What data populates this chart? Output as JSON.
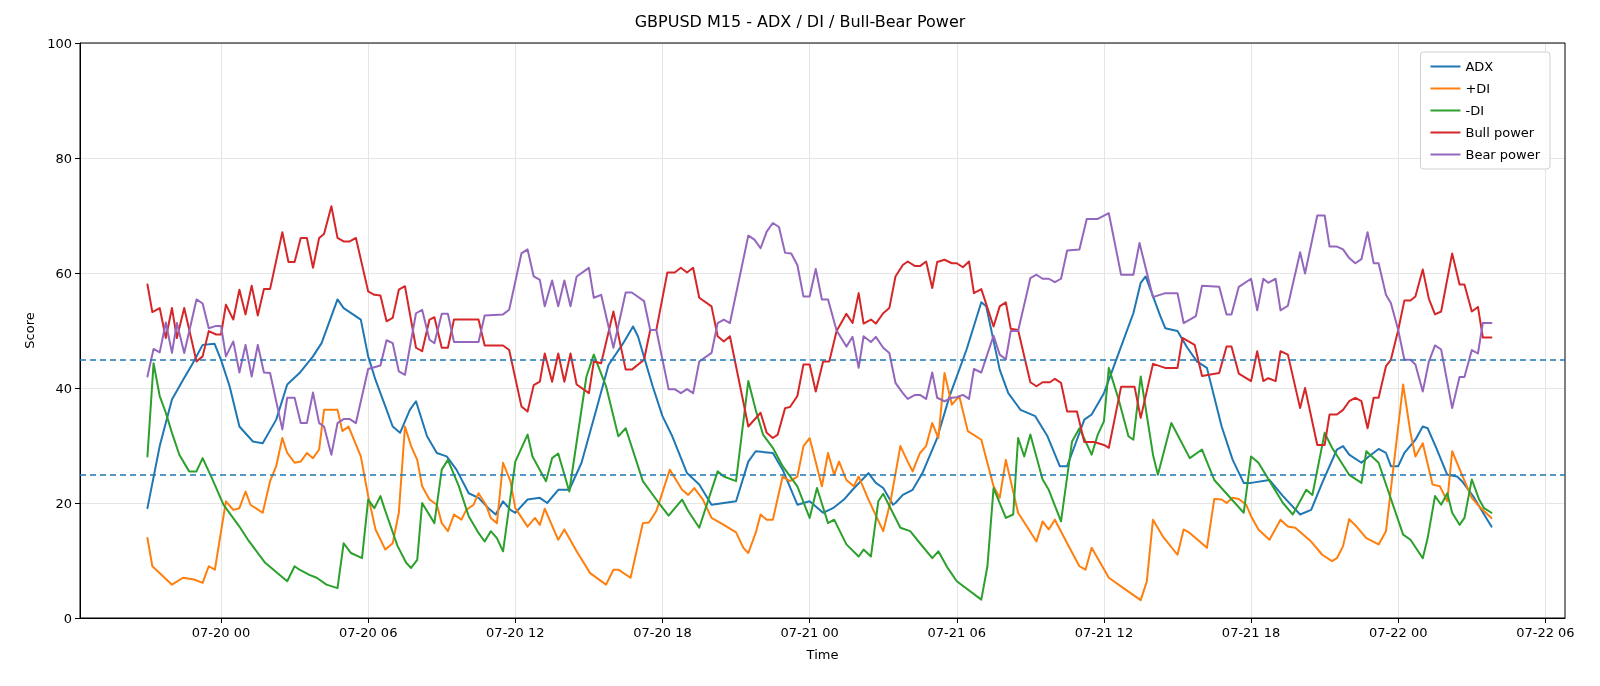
{
  "chart_data": {
    "type": "line",
    "title": "GBPUSD M15 - ADX / DI / Bull-Bear Power",
    "xlabel": "Time",
    "ylabel": "Score",
    "xlim": [
      "--07-19T18:15",
      "--07-22T06:48"
    ],
    "ylim": [
      0,
      100
    ],
    "yticks": [
      0,
      20,
      40,
      60,
      80,
      100
    ],
    "xticks": [
      {
        "value": "--07-20T00:00",
        "label": "07-20 00"
      },
      {
        "value": "--07-20T06:00",
        "label": "07-20 06"
      },
      {
        "value": "--07-20T12:00",
        "label": "07-20 12"
      },
      {
        "value": "--07-20T18:00",
        "label": "07-20 18"
      },
      {
        "value": "--07-21T00:00",
        "label": "07-21 00"
      },
      {
        "value": "--07-21T06:00",
        "label": "07-21 06"
      },
      {
        "value": "--07-21T12:00",
        "label": "07-21 12"
      },
      {
        "value": "--07-21T18:00",
        "label": "07-21 18"
      },
      {
        "value": "--07-22T00:00",
        "label": "07-22 00"
      },
      {
        "value": "--07-22T06:00",
        "label": "07-22 06"
      }
    ],
    "grid": true,
    "legend": "top right",
    "marker": "none",
    "line_style": "solid",
    "ref_lines": [
      {
        "axis": "y",
        "value": 45,
        "color": "#1f77b4",
        "line_style": "dashed"
      },
      {
        "axis": "y",
        "value": 25,
        "color": "#1f77b4",
        "line_style": "dashed"
      }
    ],
    "series": [
      {
        "name": "ADX",
        "color": "#1f77b4",
        "x": [
          "--07-19T21:00",
          "--07-19T21:30",
          "--07-19T22:00",
          "--07-19T22:27",
          "--07-19T22:51",
          "--07-19T23:15",
          "--07-19T23:44",
          "--07-20T00:00",
          "--07-20T00:21",
          "--07-20T00:45",
          "--07-20T01:18",
          "--07-20T01:42",
          "--07-20T02:15",
          "--07-20T02:42",
          "--07-20T03:12",
          "--07-20T03:45",
          "--07-20T04:06",
          "--07-20T04:45",
          "--07-20T05:00",
          "--07-20T05:42",
          "--07-20T06:00",
          "--07-20T06:18",
          "--07-20T06:42",
          "--07-20T07:00",
          "--07-20T07:18",
          "--07-20T07:42",
          "--07-20T07:57",
          "--07-20T08:24",
          "--07-20T08:48",
          "--07-20T09:12",
          "--07-20T09:36",
          "--07-20T10:06",
          "--07-20T10:30",
          "--07-20T10:54",
          "--07-20T11:12",
          "--07-20T11:30",
          "--07-20T11:48",
          "--07-20T12:00",
          "--07-20T12:30",
          "--07-20T13:00",
          "--07-20T13:18",
          "--07-20T13:45",
          "--07-20T14:12",
          "--07-20T14:42",
          "--07-20T15:18",
          "--07-20T15:48",
          "--07-20T16:24",
          "--07-20T16:48",
          "--07-20T17:00",
          "--07-20T17:36",
          "--07-20T18:00",
          "--07-20T18:24",
          "--07-20T19:00",
          "--07-20T19:30",
          "--07-20T20:00",
          "--07-20T20:30",
          "--07-20T21:00",
          "--07-20T21:30",
          "--07-20T21:48",
          "--07-20T22:30",
          "--07-20T22:54",
          "--07-20T23:30",
          "--07-21T00:00",
          "--07-21T00:33",
          "--07-21T00:57",
          "--07-21T01:24",
          "--07-21T01:45",
          "--07-21T02:24",
          "--07-21T02:42",
          "--07-21T03:00",
          "--07-21T03:24",
          "--07-21T03:30",
          "--07-21T03:48",
          "--07-21T04:12",
          "--07-21T04:36",
          "--07-21T05:12",
          "--07-21T05:42",
          "--07-21T06:24",
          "--07-21T07:00",
          "--07-21T07:12",
          "--07-21T07:45",
          "--07-21T08:06",
          "--07-21T08:36",
          "--07-21T09:12",
          "--07-21T09:42",
          "--07-21T10:12",
          "--07-21T10:30",
          "--07-21T10:54",
          "--07-21T11:12",
          "--07-21T11:30",
          "--07-21T12:00",
          "--07-21T12:30",
          "--07-21T13:12",
          "--07-21T13:30",
          "--07-21T13:42",
          "--07-21T14:18",
          "--07-21T14:30",
          "--07-21T15:00",
          "--07-21T15:24",
          "--07-21T15:48",
          "--07-21T16:12",
          "--07-21T16:48",
          "--07-21T17:15",
          "--07-21T17:42",
          "--07-21T18:00",
          "--07-21T18:45",
          "--07-21T19:18",
          "--07-21T20:00",
          "--07-21T20:27",
          "--07-21T20:54",
          "--07-21T21:30",
          "--07-21T21:45",
          "--07-21T22:00",
          "--07-21T22:30",
          "--07-21T22:48",
          "--07-21T23:12",
          "--07-21T23:30",
          "--07-21T23:42",
          "--07-22T00:00",
          "--07-22T00:15",
          "--07-22T00:42",
          "--07-22T01:00",
          "--07-22T01:12",
          "--07-22T01:33",
          "--07-22T02:00",
          "--07-22T02:24",
          "--07-22T02:36",
          "--07-22T03:03",
          "--07-22T03:48"
        ],
        "values": [
          19.1,
          29.9,
          38,
          41.4,
          44.3,
          47.5,
          47.7,
          44.9,
          40.3,
          33.3,
          30.7,
          30.4,
          34.5,
          40.6,
          42.6,
          45.5,
          47.8,
          55.4,
          53.9,
          51.9,
          45.5,
          41.4,
          36.8,
          33.3,
          32.2,
          36.2,
          37.7,
          31.6,
          28.7,
          28.1,
          25.8,
          21.7,
          20.9,
          19.1,
          18,
          20.3,
          18.8,
          18.3,
          20.6,
          20.9,
          20,
          22.3,
          22.3,
          27,
          36.2,
          44,
          47.8,
          50.7,
          49,
          40.3,
          35.1,
          31.6,
          25.2,
          23.2,
          19.7,
          20,
          20.3,
          27.2,
          29,
          28.7,
          25.8,
          19.7,
          20.3,
          18.3,
          19.1,
          20.6,
          22.3,
          25.2,
          23.5,
          22.6,
          19.7,
          20,
          21.4,
          22.3,
          25.2,
          31.3,
          38.5,
          46.7,
          54.9,
          54.2,
          43.2,
          39.1,
          36.2,
          35.1,
          31.6,
          26.4,
          26.4,
          31,
          34.5,
          35.4,
          39.1,
          44.9,
          53,
          58.3,
          59.4,
          52.5,
          50.4,
          49.9,
          47,
          44.6,
          43.5,
          33.3,
          27.5,
          23.5,
          23.5,
          24,
          21.2,
          18,
          18.8,
          23.5,
          29.3,
          29.9,
          28.4,
          27,
          28.1,
          29.4,
          28.7,
          26.4,
          26.4,
          28.7,
          31,
          33.3,
          33,
          29.6,
          24.9,
          24.6,
          23.8,
          21.2,
          15.9
        ]
      },
      {
        "name": "+DI",
        "color": "#ff7f0e",
        "x": [
          "--07-19T21:00",
          "--07-19T21:12",
          "--07-19T21:42",
          "--07-19T22:00",
          "--07-19T22:27",
          "--07-19T22:54",
          "--07-19T23:15",
          "--07-19T23:30",
          "--07-19T23:45",
          "--07-20T00:12",
          "--07-20T00:30",
          "--07-20T00:45",
          "--07-20T01:00",
          "--07-20T01:12",
          "--07-20T01:42",
          "--07-20T02:00",
          "--07-20T02:15",
          "--07-20T02:30",
          "--07-20T02:42",
          "--07-20T03:00",
          "--07-20T03:15",
          "--07-20T03:30",
          "--07-20T03:45",
          "--07-20T04:00",
          "--07-20T04:12",
          "--07-20T04:45",
          "--07-20T04:57",
          "--07-20T05:12",
          "--07-20T05:42",
          "--07-20T06:00",
          "--07-20T06:18",
          "--07-20T06:42",
          "--07-20T07:00",
          "--07-20T07:15",
          "--07-20T07:30",
          "--07-20T07:45",
          "--07-20T08:00",
          "--07-20T08:12",
          "--07-20T08:30",
          "--07-20T08:48",
          "--07-20T09:00",
          "--07-20T09:15",
          "--07-20T09:30",
          "--07-20T09:48",
          "--07-20T10:00",
          "--07-20T10:18",
          "--07-20T10:30",
          "--07-20T10:48",
          "--07-20T11:00",
          "--07-20T11:15",
          "--07-20T11:30",
          "--07-20T11:48",
          "--07-20T12:00",
          "--07-20T12:30",
          "--07-20T12:48",
          "--07-20T13:00",
          "--07-20T13:12",
          "--07-20T13:45",
          "--07-20T14:00",
          "--07-20T14:30",
          "--07-20T15:03",
          "--07-20T15:42",
          "--07-20T16:00",
          "--07-20T16:12",
          "--07-20T16:42",
          "--07-20T17:12",
          "--07-20T17:27",
          "--07-20T17:45",
          "--07-20T18:18",
          "--07-20T18:48",
          "--07-20T19:03",
          "--07-20T19:18",
          "--07-20T19:39",
          "--07-20T20:00",
          "--07-20T20:30",
          "--07-20T21:00",
          "--07-20T21:18",
          "--07-20T21:30",
          "--07-20T21:48",
          "--07-20T22:00",
          "--07-20T22:15",
          "--07-20T22:30",
          "--07-20T22:54",
          "--07-20T23:12",
          "--07-20T23:30",
          "--07-20T23:45",
          "--07-21T00:00",
          "--07-21T00:30",
          "--07-21T00:45",
          "--07-21T01:00",
          "--07-21T01:12",
          "--07-21T01:30",
          "--07-21T01:48",
          "--07-21T02:00",
          "--07-21T02:24",
          "--07-21T03:00",
          "--07-21T03:18",
          "--07-21T03:42",
          "--07-21T04:00",
          "--07-21T04:12",
          "--07-21T04:30",
          "--07-21T04:45",
          "--07-21T05:00",
          "--07-21T05:15",
          "--07-21T05:30",
          "--07-21T05:48",
          "--07-21T06:06",
          "--07-21T06:27",
          "--07-21T07:00",
          "--07-21T07:30",
          "--07-21T07:45",
          "--07-21T08:00",
          "--07-21T08:30",
          "--07-21T09:15",
          "--07-21T09:30",
          "--07-21T09:45",
          "--07-21T10:00",
          "--07-21T10:30",
          "--07-21T11:00",
          "--07-21T11:15",
          "--07-21T11:30",
          "--07-21T12:12",
          "--07-21T12:54",
          "--07-21T13:30",
          "--07-21T13:45",
          "--07-21T14:00",
          "--07-21T14:24",
          "--07-21T15:00",
          "--07-21T15:15",
          "--07-21T15:30",
          "--07-21T16:12",
          "--07-21T16:30",
          "--07-21T16:48",
          "--07-21T17:00",
          "--07-21T17:15",
          "--07-21T17:30",
          "--07-21T17:48",
          "--07-21T18:00",
          "--07-21T18:18",
          "--07-21T18:45",
          "--07-21T19:12",
          "--07-21T19:30",
          "--07-21T19:48",
          "--07-21T20:27",
          "--07-21T20:54",
          "--07-21T21:18",
          "--07-21T21:30",
          "--07-21T21:45",
          "--07-21T22:00",
          "--07-21T22:18",
          "--07-21T22:42",
          "--07-21T23:12",
          "--07-21T23:30",
          "--07-22T00:12",
          "--07-22T00:30",
          "--07-22T00:42",
          "--07-22T01:00",
          "--07-22T01:24",
          "--07-22T01:42",
          "--07-22T02:00",
          "--07-22T02:12",
          "--07-22T02:36",
          "--07-22T03:00",
          "--07-22T03:18",
          "--07-22T03:48"
        ],
        "values": [
          13.9,
          9,
          7,
          5.8,
          7,
          6.7,
          6.1,
          9,
          8.4,
          20.3,
          18.8,
          19.1,
          22,
          19.7,
          18.3,
          23.8,
          26.4,
          31.3,
          28.7,
          27,
          27.2,
          28.7,
          27.8,
          29.3,
          36.2,
          36.2,
          32.5,
          33.3,
          28.1,
          21.2,
          15.4,
          11.9,
          13,
          18.3,
          33.3,
          29.9,
          27.5,
          22.9,
          20.6,
          19.7,
          16.5,
          15.1,
          18,
          17.1,
          18.8,
          19.7,
          21.7,
          19.7,
          17.4,
          16.5,
          27,
          23.8,
          19.1,
          15.9,
          17.4,
          16.2,
          19,
          13.6,
          15.4,
          11.6,
          7.8,
          5.8,
          8.4,
          8.4,
          7,
          16.5,
          16.6,
          18.6,
          25.8,
          22.3,
          21.4,
          22.6,
          20.6,
          17.4,
          16.2,
          14.9,
          12.2,
          11.3,
          14.8,
          18,
          17.1,
          17.1,
          24.6,
          23.8,
          24.6,
          29.9,
          31.3,
          22.9,
          28.7,
          24.9,
          27.2,
          24,
          22.9,
          24.6,
          20.6,
          15.1,
          20.3,
          29.9,
          27.2,
          25.5,
          28.7,
          29.9,
          33.9,
          31.3,
          42.6,
          37.1,
          38.6,
          32.5,
          31,
          22.9,
          20.9,
          27.5,
          18.3,
          13.3,
          16.8,
          15.4,
          17.1,
          13,
          9,
          8.4,
          12.2,
          7,
          4.9,
          3.1,
          6.4,
          17.1,
          14.2,
          11,
          15.4,
          14.8,
          12.2,
          20.7,
          20.6,
          20,
          20.9,
          20.7,
          19.7,
          17.7,
          15.4,
          13.6,
          17.1,
          15.9,
          15.7,
          13.3,
          11,
          9.9,
          10.4,
          12.5,
          17.2,
          15.9,
          13.9,
          12.8,
          15.1,
          40.6,
          32.2,
          28.1,
          30.4,
          23.2,
          22.9,
          20.3,
          29,
          24.9,
          20.9,
          19.4,
          17.4
        ]
      },
      {
        "name": "-DI",
        "color": "#2ca02c",
        "x": [
          "--07-19T21:00",
          "--07-19T21:15",
          "--07-19T21:30",
          "--07-19T21:45",
          "--07-19T22:00",
          "--07-19T22:18",
          "--07-19T22:42",
          "--07-19T23:00",
          "--07-19T23:15",
          "--07-19T23:39",
          "--07-20T00:06",
          "--07-20T00:45",
          "--07-20T01:06",
          "--07-20T01:48",
          "--07-20T02:42",
          "--07-20T03:00",
          "--07-20T03:12",
          "--07-20T03:36",
          "--07-20T03:54",
          "--07-20T04:18",
          "--07-20T04:45",
          "--07-20T05:00",
          "--07-20T05:18",
          "--07-20T05:45",
          "--07-20T06:00",
          "--07-20T06:15",
          "--07-20T06:30",
          "--07-20T06:42",
          "--07-20T07:12",
          "--07-20T07:33",
          "--07-20T07:45",
          "--07-20T08:00",
          "--07-20T08:12",
          "--07-20T08:42",
          "--07-20T09:00",
          "--07-20T09:15",
          "--07-20T09:42",
          "--07-20T10:06",
          "--07-20T10:30",
          "--07-20T10:45",
          "--07-20T11:00",
          "--07-20T11:15",
          "--07-20T11:30",
          "--07-20T12:00",
          "--07-20T12:30",
          "--07-20T12:42",
          "--07-20T13:15",
          "--07-20T13:30",
          "--07-20T13:45",
          "--07-20T14:12",
          "--07-20T14:54",
          "--07-20T15:12",
          "--07-20T15:42",
          "--07-20T16:12",
          "--07-20T16:30",
          "--07-20T17:12",
          "--07-20T17:48",
          "--07-20T18:15",
          "--07-20T18:48",
          "--07-20T19:03",
          "--07-20T19:30",
          "--07-20T20:15",
          "--07-20T20:30",
          "--07-20T21:00",
          "--07-20T21:30",
          "--07-20T21:48",
          "--07-20T22:06",
          "--07-20T22:30",
          "--07-20T22:54",
          "--07-20T23:30",
          "--07-21T00:00",
          "--07-21T00:18",
          "--07-21T00:45",
          "--07-21T01:00",
          "--07-21T01:30",
          "--07-21T02:00",
          "--07-21T02:12",
          "--07-21T02:30",
          "--07-21T02:48",
          "--07-21T03:00",
          "--07-21T03:42",
          "--07-21T04:06",
          "--07-21T04:30",
          "--07-21T05:00",
          "--07-21T05:15",
          "--07-21T05:36",
          "--07-21T06:00",
          "--07-21T07:00",
          "--07-21T07:15",
          "--07-21T07:30",
          "--07-21T08:00",
          "--07-21T08:18",
          "--07-21T08:30",
          "--07-21T08:45",
          "--07-21T09:00",
          "--07-21T09:30",
          "--07-21T09:45",
          "--07-21T10:15",
          "--07-21T10:42",
          "--07-21T11:00",
          "--07-21T11:30",
          "--07-21T11:45",
          "--07-21T12:00",
          "--07-21T12:12",
          "--07-21T12:36",
          "--07-21T13:00",
          "--07-21T13:12",
          "--07-21T13:30",
          "--07-21T14:00",
          "--07-21T14:12",
          "--07-21T14:45",
          "--07-21T15:30",
          "--07-21T16:00",
          "--07-21T16:30",
          "--07-21T17:42",
          "--07-21T18:00",
          "--07-21T18:18",
          "--07-21T19:18",
          "--07-21T19:42",
          "--07-21T20:15",
          "--07-21T20:30",
          "--07-21T21:00",
          "--07-21T21:18",
          "--07-21T22:00",
          "--07-21T22:30",
          "--07-21T22:42",
          "--07-21T23:12",
          "--07-22T00:12",
          "--07-22T00:30",
          "--07-22T01:00",
          "--07-22T01:12",
          "--07-22T01:30",
          "--07-22T01:45",
          "--07-22T02:00",
          "--07-22T02:12",
          "--07-22T02:30",
          "--07-22T02:42",
          "--07-22T03:00",
          "--07-22T03:18",
          "--07-22T03:30",
          "--07-22T03:48"
        ],
        "values": [
          28.1,
          44.3,
          38.6,
          35.7,
          32.2,
          28.4,
          25.5,
          25.5,
          27.8,
          24.1,
          19.7,
          15.9,
          13.6,
          9.6,
          6.4,
          9,
          8.4,
          7.5,
          7,
          5.8,
          5.2,
          13,
          11.3,
          10.4,
          20.6,
          19.1,
          21.2,
          18.6,
          12.5,
          9.6,
          8.7,
          10.1,
          20,
          16.5,
          25.8,
          27.5,
          22.9,
          17.7,
          14.8,
          13.3,
          15.1,
          13.9,
          11.6,
          27.2,
          31.9,
          28.1,
          23.8,
          27.8,
          28.6,
          22,
          42,
          45.8,
          40.3,
          31.6,
          33,
          23.8,
          20.3,
          17.8,
          20.6,
          18.6,
          15.7,
          25.5,
          24.6,
          23.8,
          41.2,
          36.2,
          31.9,
          29.6,
          26.4,
          22.9,
          17.4,
          22.6,
          16.5,
          17.1,
          12.8,
          10.7,
          11.9,
          10.7,
          20.3,
          21.6,
          15.7,
          15.1,
          13,
          10.4,
          11.6,
          8.9,
          6.4,
          3.2,
          9,
          22.6,
          17.4,
          18,
          31.3,
          28.1,
          31.9,
          24.1,
          22.3,
          16.8,
          30.7,
          33,
          28.4,
          31.9,
          34.2,
          43.5,
          38,
          31.6,
          31,
          42,
          28.4,
          24.9,
          33.9,
          27.8,
          29.3,
          24,
          18.3,
          28.1,
          27,
          20,
          18,
          22.3,
          21.4,
          32.2,
          29.6,
          24.9,
          23.5,
          29,
          27,
          14.5,
          13.6,
          10.4,
          13.9,
          21.2,
          19.7,
          21.7,
          18.3,
          16.2,
          17.4,
          24.1,
          20.6,
          19.1,
          18.3
        ]
      },
      {
        "name": "Bull power",
        "color": "#d62728",
        "x": [
          "--07-19T21:00",
          "--07-19T21:12",
          "--07-19T21:30",
          "--07-19T21:45",
          "--07-19T22:00",
          "--07-19T22:12",
          "--07-19T22:30",
          "--07-19T23:00",
          "--07-19T23:15",
          "--07-19T23:30",
          "--07-19T23:48",
          "--07-20T00:00",
          "--07-20T00:12",
          "--07-20T00:30",
          "--07-20T00:45",
          "--07-20T01:00",
          "--07-20T01:15",
          "--07-20T01:30",
          "--07-20T01:45",
          "--07-20T02:00",
          "--07-20T02:30",
          "--07-20T02:45",
          "--07-20T03:00",
          "--07-20T03:15",
          "--07-20T03:30",
          "--07-20T03:45",
          "--07-20T04:00",
          "--07-20T04:12",
          "--07-20T04:30",
          "--07-20T04:45",
          "--07-20T05:00",
          "--07-20T05:15",
          "--07-20T05:30",
          "--07-20T06:00",
          "--07-20T06:15",
          "--07-20T06:30",
          "--07-20T06:45",
          "--07-20T07:00",
          "--07-20T07:15",
          "--07-20T07:30",
          "--07-20T07:57",
          "--07-20T08:12",
          "--07-20T08:30",
          "--07-20T08:42",
          "--07-20T09:00",
          "--07-20T09:15",
          "--07-20T09:30",
          "--07-20T10:30",
          "--07-20T10:45",
          "--07-20T11:30",
          "--07-20T11:45",
          "--07-20T12:15",
          "--07-20T12:30",
          "--07-20T12:45",
          "--07-20T13:00",
          "--07-20T13:12",
          "--07-20T13:30",
          "--07-20T13:45",
          "--07-20T14:00",
          "--07-20T14:15",
          "--07-20T14:30",
          "--07-20T15:00",
          "--07-20T15:12",
          "--07-20T15:30",
          "--07-20T16:00",
          "--07-20T16:30",
          "--07-20T16:45",
          "--07-20T17:15",
          "--07-20T17:30",
          "--07-20T17:45",
          "--07-20T18:12",
          "--07-20T18:30",
          "--07-20T18:45",
          "--07-20T19:00",
          "--07-20T19:15",
          "--07-20T19:30",
          "--07-20T20:00",
          "--07-20T20:15",
          "--07-20T20:30",
          "--07-20T20:45",
          "--07-20T21:30",
          "--07-20T22:00",
          "--07-20T22:15",
          "--07-20T22:30",
          "--07-20T22:42",
          "--07-20T23:00",
          "--07-20T23:12",
          "--07-20T23:30",
          "--07-20T23:45",
          "--07-21T00:00",
          "--07-21T00:15",
          "--07-21T00:33",
          "--07-21T00:48",
          "--07-21T01:06",
          "--07-21T01:30",
          "--07-21T01:45",
          "--07-21T02:00",
          "--07-21T02:12",
          "--07-21T02:30",
          "--07-21T02:42",
          "--07-21T03:00",
          "--07-21T03:15",
          "--07-21T03:30",
          "--07-21T03:48",
          "--07-21T04:00",
          "--07-21T04:18",
          "--07-21T04:30",
          "--07-21T04:45",
          "--07-21T05:00",
          "--07-21T05:12",
          "--07-21T05:30",
          "--07-21T05:48",
          "--07-21T06:00",
          "--07-21T06:15",
          "--07-21T06:30",
          "--07-21T06:42",
          "--07-21T07:00",
          "--07-21T07:30",
          "--07-21T07:45",
          "--07-21T08:00",
          "--07-21T08:12",
          "--07-21T08:30",
          "--07-21T09:00",
          "--07-21T09:15",
          "--07-21T09:30",
          "--07-21T09:48",
          "--07-21T10:00",
          "--07-21T10:15",
          "--07-21T10:30",
          "--07-21T10:54",
          "--07-21T11:12",
          "--07-21T11:36",
          "--07-21T12:00",
          "--07-21T12:12",
          "--07-21T12:42",
          "--07-21T13:15",
          "--07-21T13:30",
          "--07-21T14:00",
          "--07-21T14:30",
          "--07-21T15:00",
          "--07-21T15:12",
          "--07-21T15:42",
          "--07-21T16:00",
          "--07-21T16:42",
          "--07-21T17:00",
          "--07-21T17:12",
          "--07-21T17:30",
          "--07-21T18:00",
          "--07-21T18:15",
          "--07-21T18:30",
          "--07-21T18:42",
          "--07-21T19:00",
          "--07-21T19:12",
          "--07-21T19:30",
          "--07-21T20:00",
          "--07-21T20:12",
          "--07-21T20:42",
          "--07-21T21:00",
          "--07-21T21:12",
          "--07-21T21:30",
          "--07-21T21:45",
          "--07-21T22:00",
          "--07-21T22:15",
          "--07-21T22:30",
          "--07-21T22:45",
          "--07-21T23:00",
          "--07-21T23:12",
          "--07-21T23:30",
          "--07-21T23:42",
          "--07-22T00:00",
          "--07-22T00:15",
          "--07-22T00:30",
          "--07-22T00:42",
          "--07-22T01:00",
          "--07-22T01:15",
          "--07-22T01:30",
          "--07-22T01:45",
          "--07-22T02:12",
          "--07-22T02:30",
          "--07-22T02:42",
          "--07-22T03:00",
          "--07-22T03:15",
          "--07-22T03:27",
          "--07-22T03:48"
        ],
        "values": [
          58,
          53.2,
          53.9,
          48.7,
          53.9,
          48.7,
          53.9,
          44.6,
          45.5,
          49.9,
          49.3,
          49.3,
          54.5,
          51.9,
          57.1,
          52.8,
          57.8,
          52.6,
          57.2,
          57.2,
          67.1,
          61.9,
          61.9,
          66.1,
          66.1,
          60.9,
          66.1,
          66.8,
          71.6,
          66.1,
          65.5,
          65.5,
          66.1,
          56.8,
          56.2,
          56.1,
          51.6,
          52.2,
          57.1,
          57.7,
          47,
          46.4,
          51.9,
          52.3,
          47,
          47,
          51.9,
          51.9,
          47.4,
          47.4,
          46.6,
          36.8,
          35.9,
          40.5,
          41.1,
          46,
          41.1,
          46,
          41.1,
          46,
          40.6,
          39.1,
          44.6,
          44.3,
          53.3,
          43.2,
          43.2,
          44.9,
          50.1,
          50.1,
          60.1,
          60.1,
          60.9,
          60.1,
          60.9,
          55.7,
          54.2,
          49,
          48.1,
          49,
          33.3,
          35.7,
          32.2,
          31.3,
          31.9,
          36.5,
          36.7,
          38.6,
          44.1,
          44.1,
          39.4,
          44.6,
          44.6,
          49.9,
          52.9,
          51.3,
          56.5,
          51.2,
          51.9,
          51.2,
          53,
          53.9,
          59.4,
          61.4,
          62,
          61.2,
          61.2,
          62,
          57.4,
          61.9,
          62.3,
          61.7,
          61.7,
          61,
          62,
          56.5,
          57.2,
          50.7,
          54.2,
          54.9,
          50.3,
          50.1,
          41,
          40.3,
          41,
          41,
          41.6,
          40.9,
          35.9,
          35.9,
          30.6,
          30.6,
          30.1,
          29.6,
          40.2,
          40.2,
          34.8,
          44.2,
          43.5,
          43.5,
          48.7,
          47.5,
          42.1,
          42.6,
          47.2,
          47.2,
          42.5,
          41.2,
          46.4,
          41.2,
          41.7,
          41.2,
          46.4,
          45.8,
          36.5,
          40,
          30.1,
          30.1,
          35.4,
          35.4,
          36.2,
          37.7,
          38.3,
          37.7,
          33,
          38.3,
          38.3,
          43.8,
          44.9,
          50.1,
          55.2,
          55.2,
          55.9,
          60.6,
          55.5,
          52.8,
          53.3,
          63.4,
          58,
          58,
          53.3,
          54.1,
          48.8,
          48.8
        ]
      },
      {
        "name": "Bear power",
        "color": "#9467bd",
        "x": [
          "--07-19T21:00",
          "--07-19T21:15",
          "--07-19T21:30",
          "--07-19T21:45",
          "--07-19T22:00",
          "--07-19T22:12",
          "--07-19T22:30",
          "--07-19T23:00",
          "--07-19T23:15",
          "--07-19T23:30",
          "--07-19T23:48",
          "--07-20T00:00",
          "--07-20T00:12",
          "--07-20T00:30",
          "--07-20T00:45",
          "--07-20T01:00",
          "--07-20T01:15",
          "--07-20T01:30",
          "--07-20T01:45",
          "--07-20T02:00",
          "--07-20T02:30",
          "--07-20T02:42",
          "--07-20T03:00",
          "--07-20T03:15",
          "--07-20T03:30",
          "--07-20T03:45",
          "--07-20T04:00",
          "--07-20T04:12",
          "--07-20T04:30",
          "--07-20T04:45",
          "--07-20T05:00",
          "--07-20T05:15",
          "--07-20T05:30",
          "--07-20T06:00",
          "--07-20T06:30",
          "--07-20T06:45",
          "--07-20T07:00",
          "--07-20T07:15",
          "--07-20T07:30",
          "--07-20T07:57",
          "--07-20T08:12",
          "--07-20T08:30",
          "--07-20T08:42",
          "--07-20T09:00",
          "--07-20T09:15",
          "--07-20T09:30",
          "--07-20T10:30",
          "--07-20T10:45",
          "--07-20T11:30",
          "--07-20T11:45",
          "--07-20T12:15",
          "--07-20T12:30",
          "--07-20T12:45",
          "--07-20T13:00",
          "--07-20T13:12",
          "--07-20T13:30",
          "--07-20T13:45",
          "--07-20T14:00",
          "--07-20T14:15",
          "--07-20T14:30",
          "--07-20T15:00",
          "--07-20T15:12",
          "--07-20T15:30",
          "--07-20T16:00",
          "--07-20T16:30",
          "--07-20T16:45",
          "--07-20T17:15",
          "--07-20T17:30",
          "--07-20T17:45",
          "--07-20T18:15",
          "--07-20T18:30",
          "--07-20T18:45",
          "--07-20T19:00",
          "--07-20T19:15",
          "--07-20T19:30",
          "--07-20T20:00",
          "--07-20T20:15",
          "--07-20T20:30",
          "--07-20T20:45",
          "--07-20T21:30",
          "--07-20T21:45",
          "--07-20T22:00",
          "--07-20T22:15",
          "--07-20T22:30",
          "--07-20T22:45",
          "--07-20T23:00",
          "--07-20T23:15",
          "--07-20T23:30",
          "--07-20T23:45",
          "--07-21T00:00",
          "--07-21T00:15",
          "--07-21T00:30",
          "--07-21T00:45",
          "--07-21T01:06",
          "--07-21T01:30",
          "--07-21T01:45",
          "--07-21T02:00",
          "--07-21T02:12",
          "--07-21T02:30",
          "--07-21T02:42",
          "--07-21T03:00",
          "--07-21T03:15",
          "--07-21T03:30",
          "--07-21T03:48",
          "--07-21T04:00",
          "--07-21T04:18",
          "--07-21T04:30",
          "--07-21T04:45",
          "--07-21T05:00",
          "--07-21T05:12",
          "--07-21T05:30",
          "--07-21T05:48",
          "--07-21T06:00",
          "--07-21T06:15",
          "--07-21T06:30",
          "--07-21T06:42",
          "--07-21T07:00",
          "--07-21T07:30",
          "--07-21T07:45",
          "--07-21T08:00",
          "--07-21T08:12",
          "--07-21T08:30",
          "--07-21T09:00",
          "--07-21T09:15",
          "--07-21T09:30",
          "--07-21T09:45",
          "--07-21T10:00",
          "--07-21T10:15",
          "--07-21T10:30",
          "--07-21T11:00",
          "--07-21T11:18",
          "--07-21T11:45",
          "--07-21T12:12",
          "--07-21T12:42",
          "--07-21T13:12",
          "--07-21T13:27",
          "--07-21T14:00",
          "--07-21T14:30",
          "--07-21T15:00",
          "--07-21T15:15",
          "--07-21T15:45",
          "--07-21T16:00",
          "--07-21T16:42",
          "--07-21T17:00",
          "--07-21T17:12",
          "--07-21T17:30",
          "--07-21T18:00",
          "--07-21T18:15",
          "--07-21T18:30",
          "--07-21T18:42",
          "--07-21T19:00",
          "--07-21T19:12",
          "--07-21T19:30",
          "--07-21T20:00",
          "--07-21T20:12",
          "--07-21T20:42",
          "--07-21T21:00",
          "--07-21T21:12",
          "--07-21T21:30",
          "--07-21T21:45",
          "--07-21T22:00",
          "--07-21T22:15",
          "--07-21T22:30",
          "--07-21T22:45",
          "--07-21T23:00",
          "--07-21T23:12",
          "--07-21T23:30",
          "--07-21T23:42",
          "--07-22T00:00",
          "--07-22T00:15",
          "--07-22T00:30",
          "--07-22T00:42",
          "--07-22T01:00",
          "--07-22T01:15",
          "--07-22T01:30",
          "--07-22T01:45",
          "--07-22T02:12",
          "--07-22T02:30",
          "--07-22T02:42",
          "--07-22T03:00",
          "--07-22T03:15",
          "--07-22T03:27",
          "--07-22T03:48"
        ],
        "values": [
          42,
          46.8,
          46.2,
          51.4,
          46.1,
          51.3,
          46.1,
          55.4,
          54.7,
          50.4,
          50.8,
          50.8,
          45.5,
          48.1,
          42.7,
          47.5,
          42,
          47.5,
          42.7,
          42.6,
          32.8,
          38.3,
          38.3,
          33.9,
          33.9,
          39.2,
          33.9,
          33.3,
          28.4,
          33.9,
          34.6,
          34.6,
          33.9,
          43.3,
          43.9,
          48.3,
          47.8,
          42.9,
          42.3,
          53,
          53.6,
          48.4,
          47.8,
          52.9,
          52.9,
          48,
          48,
          52.6,
          52.8,
          53.6,
          63.4,
          64.1,
          59.4,
          58.8,
          54.2,
          58.7,
          54.2,
          58.7,
          54.2,
          59.4,
          60.9,
          55.7,
          56.2,
          47,
          56.6,
          56.6,
          55.1,
          50.1,
          50.1,
          39.8,
          39.8,
          39.1,
          39.8,
          39.1,
          44.6,
          46.1,
          51.3,
          51.9,
          51.3,
          66.5,
          65.8,
          64.3,
          67.2,
          68.7,
          68,
          63.5,
          63.4,
          61.4,
          55.9,
          55.9,
          60.7,
          55.4,
          55.4,
          50,
          47.2,
          48.9,
          43.5,
          49,
          48,
          48.9,
          47,
          46.1,
          40.9,
          39.1,
          38.1,
          38.8,
          38.8,
          38.1,
          42.7,
          38.3,
          37.7,
          38.3,
          38.4,
          38.8,
          38.1,
          43.3,
          42.7,
          49.1,
          45.8,
          45,
          49.9,
          49.9,
          59.1,
          59.7,
          59,
          59,
          58.4,
          59,
          63.9,
          64.1,
          69.4,
          69.4,
          70.4,
          59.7,
          59.7,
          65.2,
          55.8,
          56.5,
          56.5,
          51.3,
          52.5,
          57.8,
          57.6,
          52.8,
          52.8,
          57.6,
          59,
          53.5,
          59,
          58.3,
          59,
          53.5,
          54.3,
          63.6,
          59.9,
          70,
          70,
          64.6,
          64.6,
          64.1,
          62.6,
          61.7,
          62.4,
          67.1,
          61.7,
          61.7,
          56.2,
          54.8,
          50.1,
          44.9,
          44.9,
          44.1,
          39.4,
          44.6,
          47.4,
          46.7,
          36.5,
          41.9,
          41.9,
          46.6,
          46,
          51.3,
          51.3
        ]
      }
    ]
  }
}
